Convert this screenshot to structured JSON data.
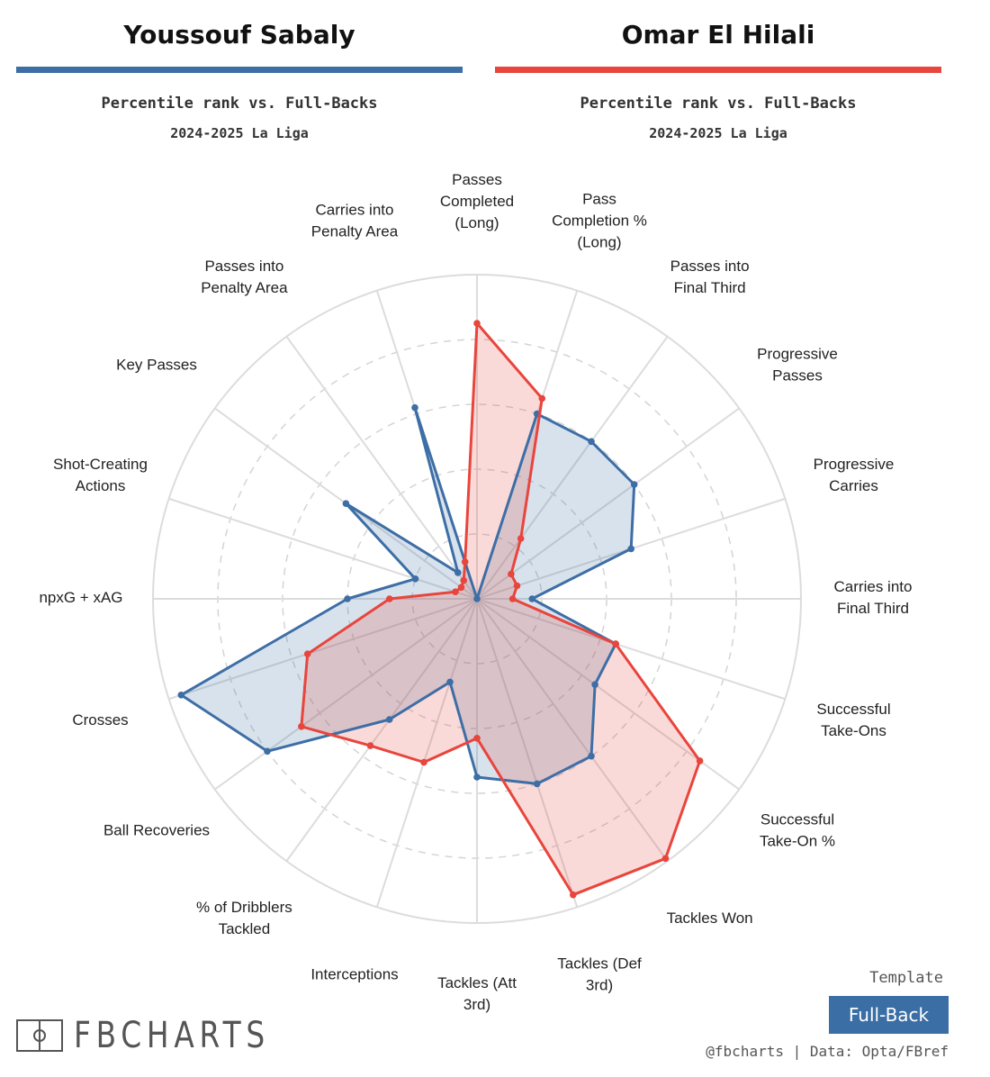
{
  "header": {
    "player1": {
      "name": "Youssouf Sabaly",
      "subtitle": "Percentile rank vs. Full-Backs",
      "season": "2024-2025 La Liga"
    },
    "player2": {
      "name": "Omar El Hilali",
      "subtitle": "Percentile rank vs. Full-Backs",
      "season": "2024-2025 La Liga"
    }
  },
  "chart_data": {
    "type": "radar",
    "axes": [
      "Passes Completed (Long)",
      "Pass Completion % (Long)",
      "Passes into Final Third",
      "Progressive Passes",
      "Progressive Carries",
      "Carries into Final Third",
      "Successful Take-Ons",
      "Successful Take-On %",
      "Tackles Won",
      "Tackles (Def 3rd)",
      "Tackles (Att 3rd)",
      "Interceptions",
      "% of Dribblers Tackled",
      "Ball Recoveries",
      "Crosses",
      "npxG + xAG",
      "Shot-Creating Actions",
      "Key Passes",
      "Passes into Penalty Area",
      "Carries into Penalty Area"
    ],
    "axis_label_lines": [
      [
        "Passes",
        "Completed",
        "(Long)"
      ],
      [
        "Pass",
        "Completion %",
        "(Long)"
      ],
      [
        "Passes into",
        "Final Third"
      ],
      [
        "Progressive",
        "Passes"
      ],
      [
        "Progressive",
        "Carries"
      ],
      [
        "Carries into",
        "Final Third"
      ],
      [
        "Successful",
        "Take-Ons"
      ],
      [
        "Successful",
        "Take-On %"
      ],
      [
        "Tackles Won"
      ],
      [
        "Tackles (Def",
        "3rd)"
      ],
      [
        "Tackles (Att",
        "3rd)"
      ],
      [
        "Interceptions"
      ],
      [
        "% of Dribblers",
        "Tackled"
      ],
      [
        "Ball Recoveries"
      ],
      [
        "Crosses"
      ],
      [
        "npxG + xAG"
      ],
      [
        "Shot-Creating",
        "Actions"
      ],
      [
        "Key Passes"
      ],
      [
        "Passes into",
        "Penalty Area"
      ],
      [
        "Carries into",
        "Penalty Area"
      ]
    ],
    "rmax": 100,
    "series": [
      {
        "name": "Youssouf Sabaly",
        "color": "#3d6ea5",
        "values": [
          0,
          60,
          60,
          60,
          50,
          17,
          45,
          45,
          60,
          60,
          55,
          27,
          46,
          80,
          96,
          40,
          20,
          50,
          10,
          62
        ]
      },
      {
        "name": "Omar El Hilali",
        "color": "#e8453c",
        "values": [
          85,
          65,
          23,
          13,
          13,
          11,
          45,
          85,
          99,
          96,
          43,
          53,
          56,
          67,
          55,
          27,
          7,
          6,
          7,
          12
        ]
      }
    ],
    "grid": "dashed rings at 20%-80%, solid outer ring"
  },
  "footer": {
    "logo_text": "FBCHARTS",
    "template_label": "Template",
    "template_value": "Full-Back",
    "credit": "@fbcharts | Data: Opta/FBref"
  }
}
